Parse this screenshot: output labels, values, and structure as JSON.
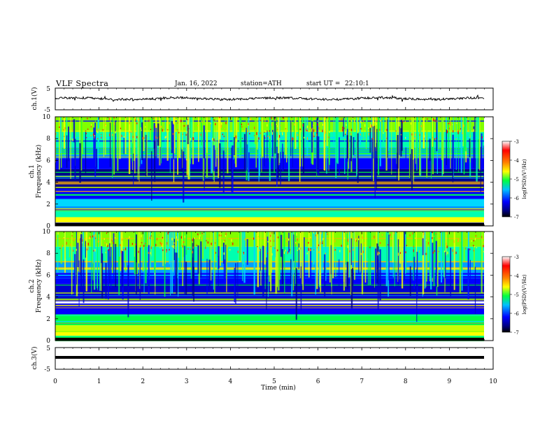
{
  "header": {
    "title": "VLF Spectra",
    "date": "Jan. 16, 2022",
    "station": "station=ATH",
    "start": "start UT =",
    "start_time": "22:10:1"
  },
  "chart_data": [
    {
      "type": "line",
      "ylabel": "ch.1(V)",
      "ylim": [
        -5,
        5
      ],
      "yticks": [
        "5",
        "-5"
      ],
      "xlim": [
        0,
        10
      ],
      "description_level": 0,
      "x": [
        0,
        9.8
      ]
    },
    {
      "type": "heatmap",
      "ylabel": "ch.1\nFrequency (kHz)",
      "ylabel_line1": "ch.1",
      "ylabel_line2": "Frequency (kHz)",
      "ylim": [
        0,
        10
      ],
      "yticks": [
        "0",
        "2",
        "4",
        "6",
        "8",
        "10"
      ],
      "xlim": [
        0,
        9.8
      ],
      "colorbar": {
        "label": "log(PSD)(V²/Hz)",
        "range": [
          -7,
          -3
        ],
        "ticks": [
          "-3",
          "-4",
          "-5",
          "-6",
          "-7"
        ]
      }
    },
    {
      "type": "heatmap",
      "ylabel_line1": "ch.2",
      "ylabel_line2": "Frequency (kHz)",
      "ylim": [
        0,
        10
      ],
      "yticks": [
        "0",
        "2",
        "4",
        "6",
        "8",
        "10"
      ],
      "xlim": [
        0,
        9.8
      ],
      "colorbar": {
        "label": "log(PSD)(V²/Hz)",
        "range": [
          -7,
          -3
        ],
        "ticks": [
          "-3",
          "-4",
          "-5",
          "-6",
          "-7"
        ]
      }
    },
    {
      "type": "line",
      "ylabel": "ch.3(V)",
      "ylim": [
        -5,
        5
      ],
      "yticks": [
        "5",
        "-5"
      ],
      "xlim": [
        0,
        10
      ]
    }
  ],
  "xaxis": {
    "label": "Time (min)",
    "ticks": [
      "0",
      "1",
      "2",
      "3",
      "4",
      "5",
      "6",
      "7",
      "8",
      "9",
      "10"
    ],
    "range": [
      0,
      10
    ]
  },
  "colorbar_label": "log(PSD)(V²/Hz)",
  "colors": {
    "background": "#ffffff",
    "trace": "#000000",
    "colormap": [
      "#000000",
      "#00008b",
      "#0000ff",
      "#00bfff",
      "#00ff7f",
      "#7fff00",
      "#ffff00",
      "#ff7f00",
      "#ff0000",
      "#ffffff"
    ]
  }
}
